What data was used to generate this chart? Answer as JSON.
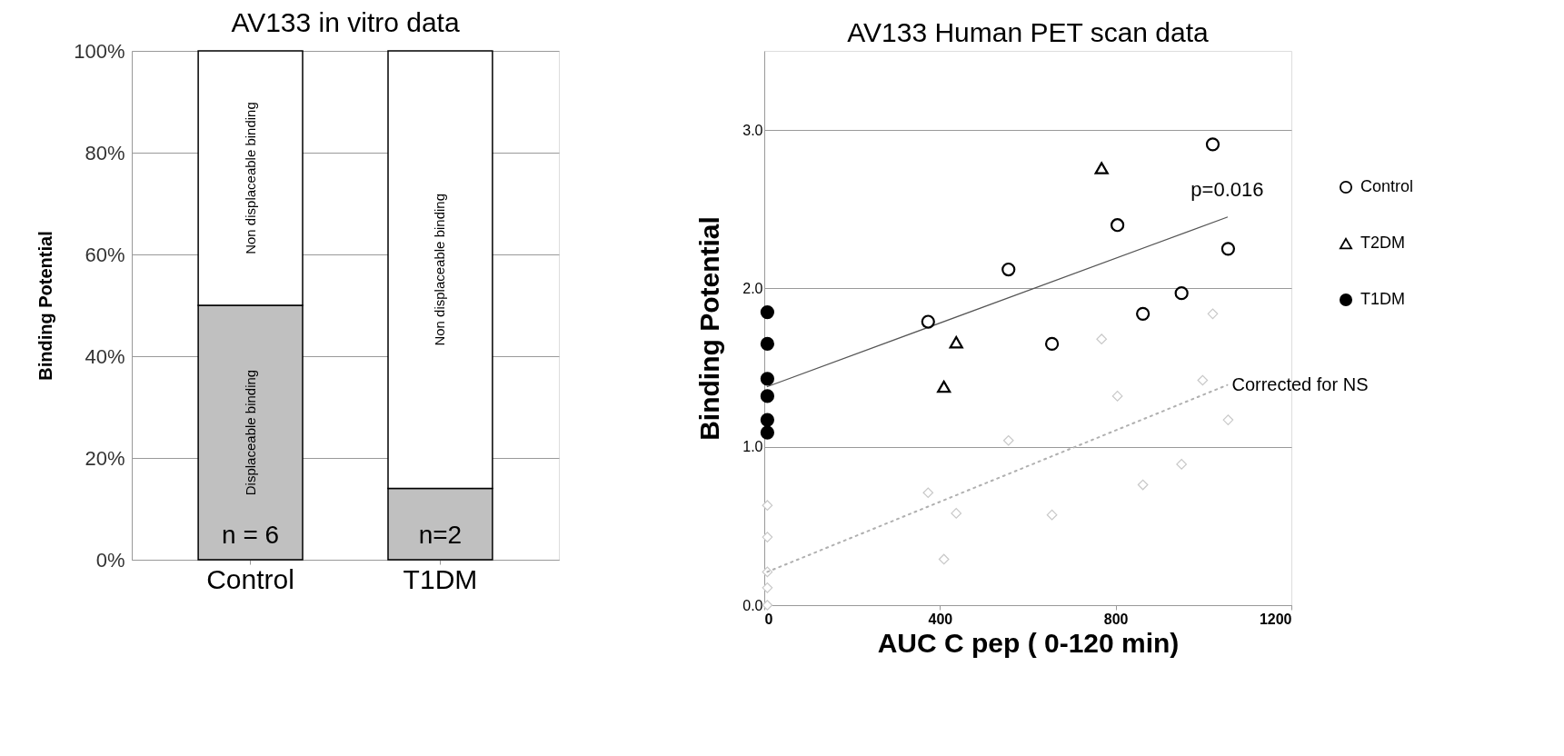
{
  "chart_data": [
    {
      "type": "bar",
      "title": "AV133 in vitro data",
      "ylabel": "Binding Potential",
      "stacked": true,
      "grid": "y",
      "categories": [
        "Control",
        "T1DM"
      ],
      "series": [
        {
          "name": "Displaceable binding",
          "color": "#c0c0c0",
          "values": [
            50,
            14
          ]
        },
        {
          "name": "Non displaceable binding",
          "color": "#ffffff",
          "values": [
            50,
            86
          ]
        }
      ],
      "ylim": [
        0,
        100
      ],
      "yticks": [
        {
          "value": 0,
          "label": "0%"
        },
        {
          "value": 20,
          "label": "20%"
        },
        {
          "value": 40,
          "label": "40%"
        },
        {
          "value": 60,
          "label": "60%"
        },
        {
          "value": 80,
          "label": "80%"
        },
        {
          "value": 100,
          "label": "100%"
        }
      ],
      "annotations": [
        "n = 6",
        "n=2"
      ]
    },
    {
      "type": "scatter",
      "title": "AV133 Human PET scan data",
      "xlabel": "AUC C pep ( 0-120 min)",
      "ylabel": "Binding Potential",
      "grid": "y",
      "legend": "right",
      "xlim": [
        0,
        1200
      ],
      "xticks": [
        0,
        400,
        800,
        1200
      ],
      "ylim": [
        0,
        3.5
      ],
      "yticks": [
        {
          "value": 0,
          "label": "0.0"
        },
        {
          "value": 1,
          "label": "1.0"
        },
        {
          "value": 2,
          "label": "2.0"
        },
        {
          "value": 3,
          "label": "3.0"
        }
      ],
      "series": [
        {
          "name": "Control",
          "color": "#ffffff",
          "marker": "circle",
          "x": [
            373,
            556,
            655,
            804,
            862,
            950,
            1021,
            1056
          ],
          "values": [
            1.79,
            2.12,
            1.65,
            2.4,
            1.84,
            1.97,
            2.91,
            2.25
          ]
        },
        {
          "name": "T2DM",
          "color": "#ffffff",
          "marker": "triangle",
          "x": [
            409,
            437,
            768
          ],
          "values": [
            1.38,
            1.66,
            2.76
          ]
        },
        {
          "name": "T1DM",
          "color": "#000000",
          "marker": "circle",
          "x": [
            7,
            7,
            7,
            7,
            7,
            7
          ],
          "values": [
            1.85,
            1.65,
            1.43,
            1.32,
            1.17,
            1.09
          ]
        },
        {
          "color": "#c8c8c8",
          "marker": "diamond",
          "x": [
            1021,
            768,
            998,
            804,
            1056,
            556,
            373,
            950,
            862,
            437,
            655,
            409,
            7,
            7,
            7,
            7,
            7
          ],
          "values": [
            1.84,
            1.68,
            1.42,
            1.32,
            1.17,
            1.04,
            0.71,
            0.89,
            0.76,
            0.58,
            0.57,
            0.29,
            0.63,
            0.43,
            0.21,
            0.11,
            0.0
          ]
        },
        {
          "type": "line",
          "color": "#555555",
          "line_style": "solid",
          "x": [
            7,
            1054
          ],
          "values": [
            1.38,
            2.45
          ]
        },
        {
          "type": "line",
          "name": "Corrected for NS",
          "color": "#b0b0b0",
          "line_style": "dotted",
          "x": [
            7,
            1054
          ],
          "values": [
            0.21,
            1.39
          ]
        }
      ],
      "annotations": [
        {
          "text": "p=0.016",
          "x": 1054,
          "y": 2.45
        }
      ]
    }
  ]
}
